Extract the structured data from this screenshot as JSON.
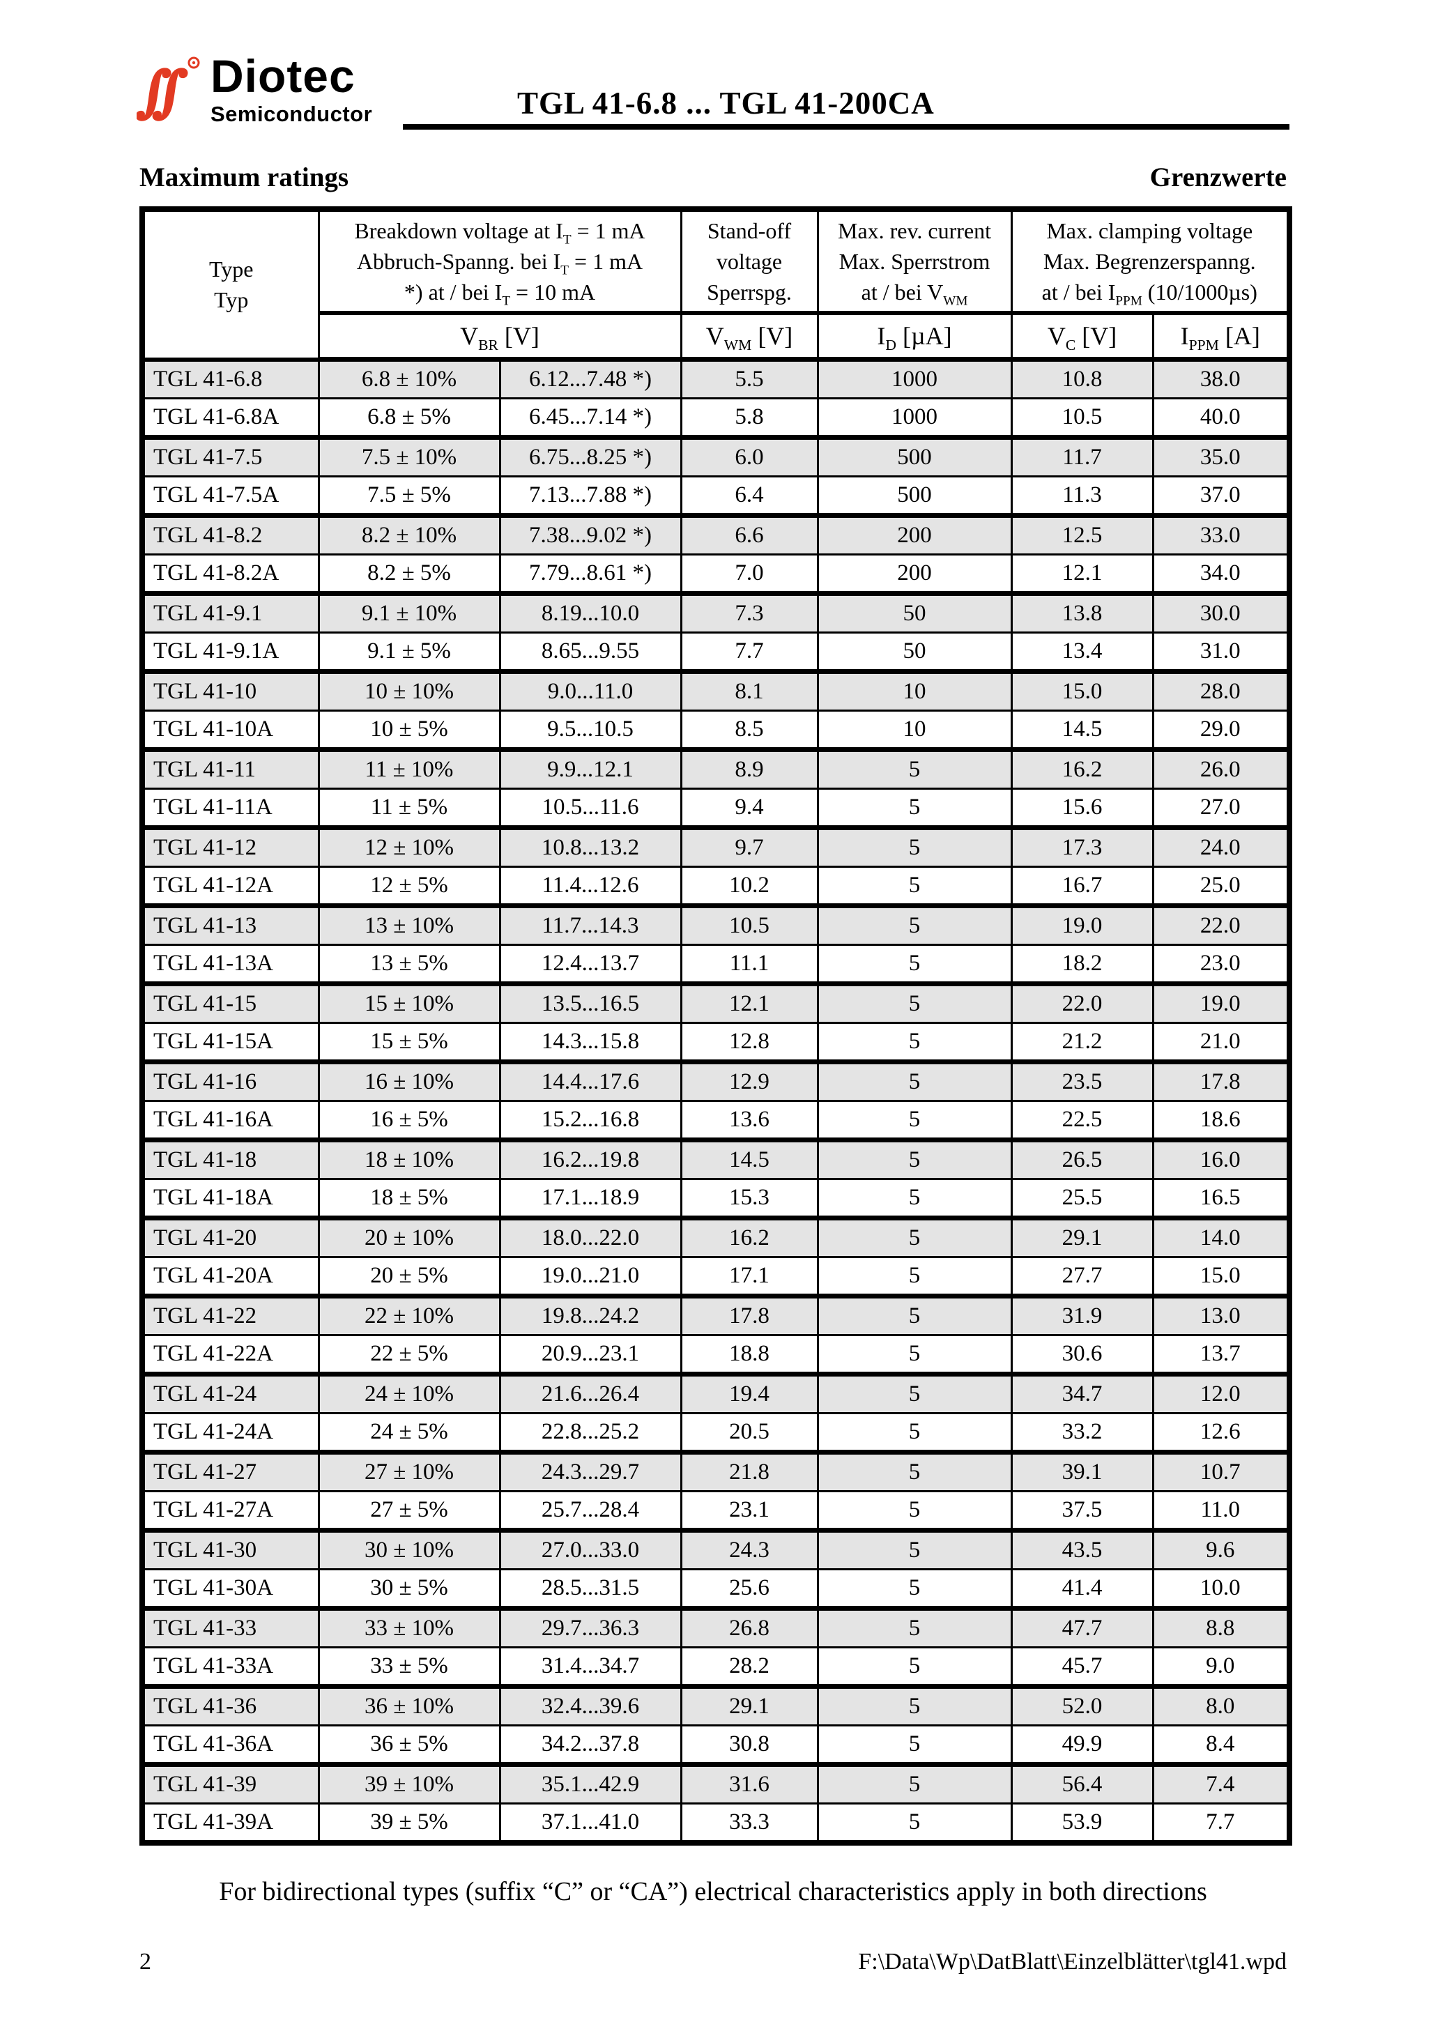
{
  "page": {
    "title": "TGL 41-6.8 ... TGL 41-200CA",
    "section_left": "Maximum ratings",
    "section_right": "Grenzwerte",
    "footnote": "For bidirectional types (suffix “C” or “CA”) electrical characteristics apply in both directions",
    "page_number": "2",
    "file_path": "F:\\Data\\Wp\\DatBlatt\\Einzelblätter\\tgl41.wpd"
  },
  "logo": {
    "brand": "Diotec",
    "sub": "Semiconductor",
    "mark_icon": "diotec-script-mark",
    "accent_color": "#e23a22"
  },
  "colors": {
    "row_alt_gray": "#e4e4e4",
    "border_black": "#000000"
  },
  "table": {
    "header": {
      "type_lines": [
        "Type",
        "Typ"
      ],
      "breakdown_lines": [
        [
          {
            "t": "Breakdown voltage at I"
          },
          {
            "t": "T",
            "sub": true
          },
          {
            "t": " = 1 mA"
          }
        ],
        [
          {
            "t": "Abbruch-Spanng. bei I"
          },
          {
            "t": "T",
            "sub": true
          },
          {
            "t": " = 1 mA"
          }
        ],
        [
          {
            "t": "*) at / bei I"
          },
          {
            "t": "T",
            "sub": true
          },
          {
            "t": " = 10 mA"
          }
        ]
      ],
      "standoff_lines": [
        [
          {
            "t": "Stand-off"
          }
        ],
        [
          {
            "t": "voltage"
          }
        ],
        [
          {
            "t": "Sperrspg."
          }
        ]
      ],
      "revcurrent_lines": [
        [
          {
            "t": "Max. rev. current"
          }
        ],
        [
          {
            "t": "Max. Sperrstrom"
          }
        ],
        [
          {
            "t": "at / bei V"
          },
          {
            "t": "WM",
            "sub": true
          }
        ]
      ],
      "clamping_lines": [
        [
          {
            "t": "Max. clamping voltage"
          }
        ],
        [
          {
            "t": "Max. Begrenzerspanng."
          }
        ],
        [
          {
            "t": "at / bei I"
          },
          {
            "t": "PPM",
            "sub": true
          },
          {
            "t": " (10/1000µs)"
          }
        ]
      ],
      "units": {
        "vbr": [
          {
            "t": "V"
          },
          {
            "t": "BR",
            "sub": true
          },
          {
            "t": " [V]"
          }
        ],
        "vwm": [
          {
            "t": "V"
          },
          {
            "t": "WM",
            "sub": true
          },
          {
            "t": " [V]"
          }
        ],
        "id": [
          {
            "t": "I"
          },
          {
            "t": "D",
            "sub": true
          },
          {
            "t": " [µA]"
          }
        ],
        "vc": [
          {
            "t": "V"
          },
          {
            "t": "C",
            "sub": true
          },
          {
            "t": " [V]"
          }
        ],
        "ippm": [
          {
            "t": "I"
          },
          {
            "t": "PPM",
            "sub": true
          },
          {
            "t": " [A]"
          }
        ]
      }
    },
    "rows": [
      [
        "TGL 41-6.8",
        "6.8 ± 10%",
        "6.12...7.48 *)",
        "5.5",
        "1000",
        "10.8",
        "38.0"
      ],
      [
        "TGL 41-6.8A",
        "6.8 ± 5%",
        "6.45...7.14 *)",
        "5.8",
        "1000",
        "10.5",
        "40.0"
      ],
      [
        "TGL 41-7.5",
        "7.5 ± 10%",
        "6.75...8.25 *)",
        "6.0",
        "500",
        "11.7",
        "35.0"
      ],
      [
        "TGL 41-7.5A",
        "7.5 ± 5%",
        "7.13...7.88 *)",
        "6.4",
        "500",
        "11.3",
        "37.0"
      ],
      [
        "TGL 41-8.2",
        "8.2 ± 10%",
        "7.38...9.02 *)",
        "6.6",
        "200",
        "12.5",
        "33.0"
      ],
      [
        "TGL 41-8.2A",
        "8.2 ± 5%",
        "7.79...8.61 *)",
        "7.0",
        "200",
        "12.1",
        "34.0"
      ],
      [
        "TGL 41-9.1",
        "9.1 ± 10%",
        "8.19...10.0",
        "7.3",
        "50",
        "13.8",
        "30.0"
      ],
      [
        "TGL 41-9.1A",
        "9.1 ± 5%",
        "8.65...9.55",
        "7.7",
        "50",
        "13.4",
        "31.0"
      ],
      [
        "TGL 41-10",
        "10 ± 10%",
        "9.0...11.0",
        "8.1",
        "10",
        "15.0",
        "28.0"
      ],
      [
        "TGL 41-10A",
        "10 ± 5%",
        "9.5...10.5",
        "8.5",
        "10",
        "14.5",
        "29.0"
      ],
      [
        "TGL 41-11",
        "11 ± 10%",
        "9.9...12.1",
        "8.9",
        "5",
        "16.2",
        "26.0"
      ],
      [
        "TGL 41-11A",
        "11 ± 5%",
        "10.5...11.6",
        "9.4",
        "5",
        "15.6",
        "27.0"
      ],
      [
        "TGL 41-12",
        "12 ± 10%",
        "10.8...13.2",
        "9.7",
        "5",
        "17.3",
        "24.0"
      ],
      [
        "TGL 41-12A",
        "12 ± 5%",
        "11.4...12.6",
        "10.2",
        "5",
        "16.7",
        "25.0"
      ],
      [
        "TGL 41-13",
        "13 ± 10%",
        "11.7...14.3",
        "10.5",
        "5",
        "19.0",
        "22.0"
      ],
      [
        "TGL 41-13A",
        "13 ± 5%",
        "12.4...13.7",
        "11.1",
        "5",
        "18.2",
        "23.0"
      ],
      [
        "TGL 41-15",
        "15 ± 10%",
        "13.5...16.5",
        "12.1",
        "5",
        "22.0",
        "19.0"
      ],
      [
        "TGL 41-15A",
        "15 ± 5%",
        "14.3...15.8",
        "12.8",
        "5",
        "21.2",
        "21.0"
      ],
      [
        "TGL 41-16",
        "16 ± 10%",
        "14.4...17.6",
        "12.9",
        "5",
        "23.5",
        "17.8"
      ],
      [
        "TGL 41-16A",
        "16 ± 5%",
        "15.2...16.8",
        "13.6",
        "5",
        "22.5",
        "18.6"
      ],
      [
        "TGL 41-18",
        "18 ± 10%",
        "16.2...19.8",
        "14.5",
        "5",
        "26.5",
        "16.0"
      ],
      [
        "TGL 41-18A",
        "18 ± 5%",
        "17.1...18.9",
        "15.3",
        "5",
        "25.5",
        "16.5"
      ],
      [
        "TGL 41-20",
        "20 ± 10%",
        "18.0...22.0",
        "16.2",
        "5",
        "29.1",
        "14.0"
      ],
      [
        "TGL 41-20A",
        "20 ± 5%",
        "19.0...21.0",
        "17.1",
        "5",
        "27.7",
        "15.0"
      ],
      [
        "TGL 41-22",
        "22 ± 10%",
        "19.8...24.2",
        "17.8",
        "5",
        "31.9",
        "13.0"
      ],
      [
        "TGL 41-22A",
        "22 ± 5%",
        "20.9...23.1",
        "18.8",
        "5",
        "30.6",
        "13.7"
      ],
      [
        "TGL 41-24",
        "24 ± 10%",
        "21.6...26.4",
        "19.4",
        "5",
        "34.7",
        "12.0"
      ],
      [
        "TGL 41-24A",
        "24 ± 5%",
        "22.8...25.2",
        "20.5",
        "5",
        "33.2",
        "12.6"
      ],
      [
        "TGL 41-27",
        "27 ± 10%",
        "24.3...29.7",
        "21.8",
        "5",
        "39.1",
        "10.7"
      ],
      [
        "TGL 41-27A",
        "27 ± 5%",
        "25.7...28.4",
        "23.1",
        "5",
        "37.5",
        "11.0"
      ],
      [
        "TGL 41-30",
        "30 ± 10%",
        "27.0...33.0",
        "24.3",
        "5",
        "43.5",
        "9.6"
      ],
      [
        "TGL 41-30A",
        "30 ± 5%",
        "28.5...31.5",
        "25.6",
        "5",
        "41.4",
        "10.0"
      ],
      [
        "TGL 41-33",
        "33 ± 10%",
        "29.7...36.3",
        "26.8",
        "5",
        "47.7",
        "8.8"
      ],
      [
        "TGL 41-33A",
        "33 ± 5%",
        "31.4...34.7",
        "28.2",
        "5",
        "45.7",
        "9.0"
      ],
      [
        "TGL 41-36",
        "36 ± 10%",
        "32.4...39.6",
        "29.1",
        "5",
        "52.0",
        "8.0"
      ],
      [
        "TGL 41-36A",
        "36 ± 5%",
        "34.2...37.8",
        "30.8",
        "5",
        "49.9",
        "8.4"
      ],
      [
        "TGL 41-39",
        "39 ± 10%",
        "35.1...42.9",
        "31.6",
        "5",
        "56.4",
        "7.4"
      ],
      [
        "TGL 41-39A",
        "39 ± 5%",
        "37.1...41.0",
        "33.3",
        "5",
        "53.9",
        "7.7"
      ]
    ]
  }
}
